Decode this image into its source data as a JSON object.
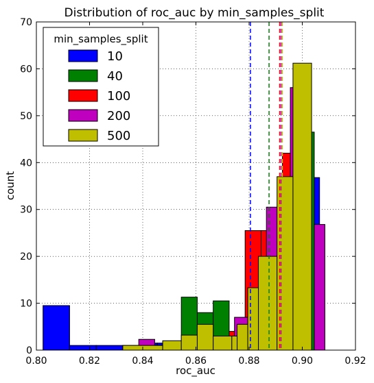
{
  "chart_data": {
    "type": "histogram",
    "title": "Distribution of roc_auc by min_samples_split",
    "xlabel": "roc_auc",
    "ylabel": "count",
    "xlim": [
      0.8,
      0.92
    ],
    "ylim": [
      0,
      70
    ],
    "xticks": [
      "0.80",
      "0.82",
      "0.84",
      "0.86",
      "0.88",
      "0.90",
      "0.92"
    ],
    "yticks": [
      "0",
      "10",
      "20",
      "30",
      "40",
      "50",
      "60",
      "70"
    ],
    "grid": true,
    "legend": {
      "title": "min_samples_split",
      "placement": "top-left"
    },
    "series": [
      {
        "name": "10",
        "color": "#0000ff",
        "edges": [
          0.8025,
          0.8125,
          0.8225,
          0.8325,
          0.8425,
          0.8455,
          0.8525,
          0.8625,
          0.8725,
          0.8825,
          0.8925,
          0.8985,
          0.9015,
          0.9045,
          0.9065
        ],
        "counts": [
          9.5,
          1,
          1,
          1,
          1.5,
          1.5,
          0,
          0,
          0,
          0,
          0,
          0,
          0,
          36.8
        ],
        "mean": 0.8805
      },
      {
        "name": "40",
        "color": "#008000",
        "edges": [
          0.8545,
          0.8605,
          0.8665,
          0.8725,
          0.8785,
          0.8845,
          0.8905,
          0.8965,
          0.9025,
          0.9045
        ],
        "counts": [
          11.3,
          8,
          10.5,
          0,
          0,
          0,
          0,
          0,
          46.5
        ],
        "mean": 0.8875
      },
      {
        "name": "100",
        "color": "#ff0000",
        "edges": [
          0.8425,
          0.8485,
          0.8545,
          0.8605,
          0.8665,
          0.8725,
          0.8785,
          0.8845,
          0.8905,
          0.8925,
          0.8965
        ],
        "counts": [
          0,
          0,
          2,
          3,
          2,
          4,
          25.5,
          25.5,
          0,
          42
        ],
        "mean": 0.8915
      },
      {
        "name": "200",
        "color": "#bf00bf",
        "edges": [
          0.8325,
          0.8385,
          0.8445,
          0.8505,
          0.8565,
          0.8625,
          0.8685,
          0.8745,
          0.8805,
          0.8865,
          0.8925,
          0.8955,
          0.9005,
          0.9045,
          0.9085
        ],
        "counts": [
          0,
          2.3,
          1,
          1,
          3,
          2,
          2.5,
          7,
          0,
          30.5,
          0,
          56,
          0,
          26.8
        ],
        "mean": 0.892
      },
      {
        "name": "500",
        "color": "#bfbf00",
        "edges": [
          0.8325,
          0.8475,
          0.8545,
          0.8605,
          0.8665,
          0.8735,
          0.8755,
          0.8795,
          0.8835,
          0.8905,
          0.8965,
          0.9035
        ],
        "counts": [
          1,
          2,
          3.2,
          5.5,
          3,
          3,
          5.5,
          13.3,
          20,
          37,
          61.2
        ],
        "mean": 0.8925
      }
    ]
  }
}
